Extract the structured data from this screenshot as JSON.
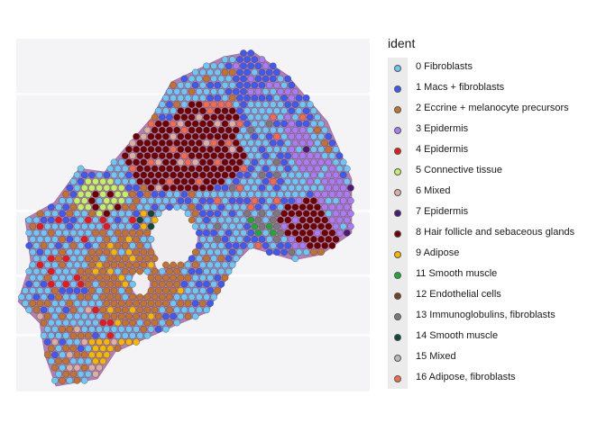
{
  "chart_data": {
    "type": "scatter",
    "title": "",
    "xlabel": "",
    "ylabel": "",
    "background": "tissue-histology-image",
    "grid": false,
    "legend": {
      "title": "ident",
      "position": "right",
      "items": [
        {
          "label": "0 Fibroblasts",
          "color": "#6ec6f5"
        },
        {
          "label": "1 Macs + fibroblasts",
          "color": "#3d5bf0"
        },
        {
          "label": "2 Eccrine + melanocyte precursors",
          "color": "#c0742f"
        },
        {
          "label": "3 Epidermis",
          "color": "#a77cf5"
        },
        {
          "label": "4 Epidermis",
          "color": "#e41a1c"
        },
        {
          "label": "5 Connective tissue",
          "color": "#c3f06a"
        },
        {
          "label": "6 Mixed",
          "color": "#d9b0a3"
        },
        {
          "label": "7 Epidermis",
          "color": "#4b1a7a"
        },
        {
          "label": "8 Hair follicle and sebaceous glands",
          "color": "#6e0000"
        },
        {
          "label": "9 Adipose",
          "color": "#f5b800"
        },
        {
          "label": "11 Smooth muscle",
          "color": "#22a83a"
        },
        {
          "label": "12 Endothelial cells",
          "color": "#6e4423"
        },
        {
          "label": "13 Immunoglobulins, fibroblasts",
          "color": "#7a7a7a"
        },
        {
          "label": "14 Smooth muscle",
          "color": "#0d4a3a"
        },
        {
          "label": "15 Mixed",
          "color": "#b8b8b8"
        },
        {
          "label": "16 Adipose, fibroblasts",
          "color": "#f26b4d"
        }
      ]
    }
  }
}
